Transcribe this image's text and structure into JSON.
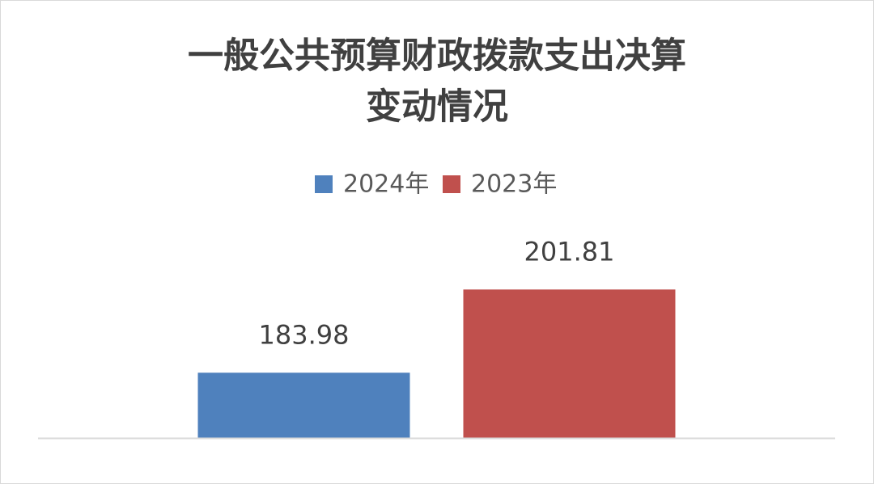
{
  "chart_data": {
    "type": "bar",
    "title": [
      "一般公共预算财政拨款支出决算",
      "变动情况"
    ],
    "categories": [
      null
    ],
    "series": [
      {
        "name": "2024年",
        "color": "#4f81bd",
        "values": [
          183.98
        ]
      },
      {
        "name": "2023年",
        "color": "#c0504d",
        "values": [
          201.81
        ]
      }
    ],
    "ylim": [
      170,
      210
    ],
    "legend": "top"
  }
}
